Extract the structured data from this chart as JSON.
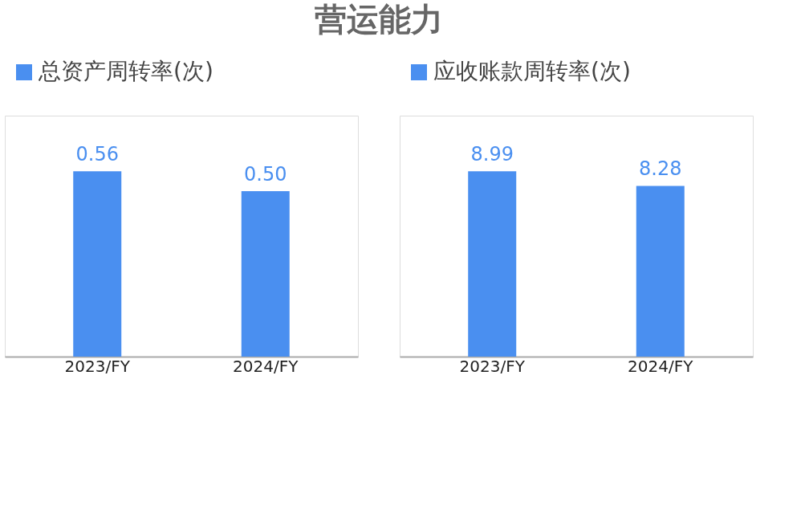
{
  "chart_data": [
    {
      "type": "bar",
      "title": "营运能力",
      "categories": [
        "2023/FY",
        "2024/FY"
      ],
      "series": [
        {
          "name": "总资产周转率(次)",
          "color": "#4a8ff0",
          "values": [
            0.56,
            0.5
          ],
          "value_labels": [
            "0.56",
            "0.50"
          ]
        }
      ],
      "legend": "top left",
      "data_labels": true,
      "grid": false
    },
    {
      "type": "bar",
      "categories": [
        "2023/FY",
        "2024/FY"
      ],
      "series": [
        {
          "name": "应收账款周转率(次)",
          "color": "#4a8ff0",
          "values": [
            8.99,
            8.28
          ],
          "value_labels": [
            "8.99",
            "8.28"
          ]
        }
      ],
      "legend": "top left",
      "data_labels": true,
      "grid": false
    }
  ]
}
